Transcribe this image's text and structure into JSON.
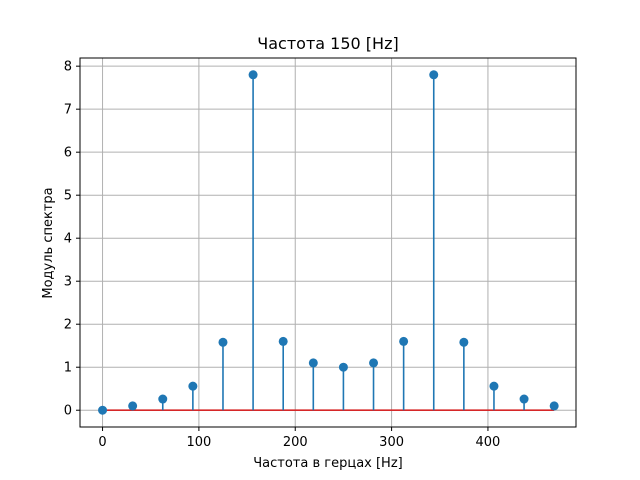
{
  "chart_data": {
    "type": "stem",
    "title": "Частота 150 [Hz]",
    "xlabel": "Частота в герцах [Hz]",
    "ylabel": "Модуль спектра",
    "xlim": [
      -23.4,
      491.4
    ],
    "ylim": [
      -0.39,
      8.19
    ],
    "xticks": [
      0,
      100,
      200,
      300,
      400
    ],
    "yticks": [
      0,
      1,
      2,
      3,
      4,
      5,
      6,
      7,
      8
    ],
    "grid": true,
    "x": [
      0,
      31.25,
      62.5,
      93.75,
      125,
      156.25,
      187.5,
      218.75,
      250,
      281.25,
      312.5,
      343.75,
      375,
      406.25,
      437.5,
      468.75
    ],
    "y": [
      0,
      0.1,
      0.26,
      0.56,
      1.58,
      7.8,
      1.6,
      1.1,
      1.0,
      1.1,
      1.6,
      7.8,
      1.58,
      0.56,
      0.26,
      0.1
    ],
    "colors": {
      "stem": "#1f77b4",
      "baseline": "#d62728",
      "grid": "#b0b0b0"
    }
  }
}
